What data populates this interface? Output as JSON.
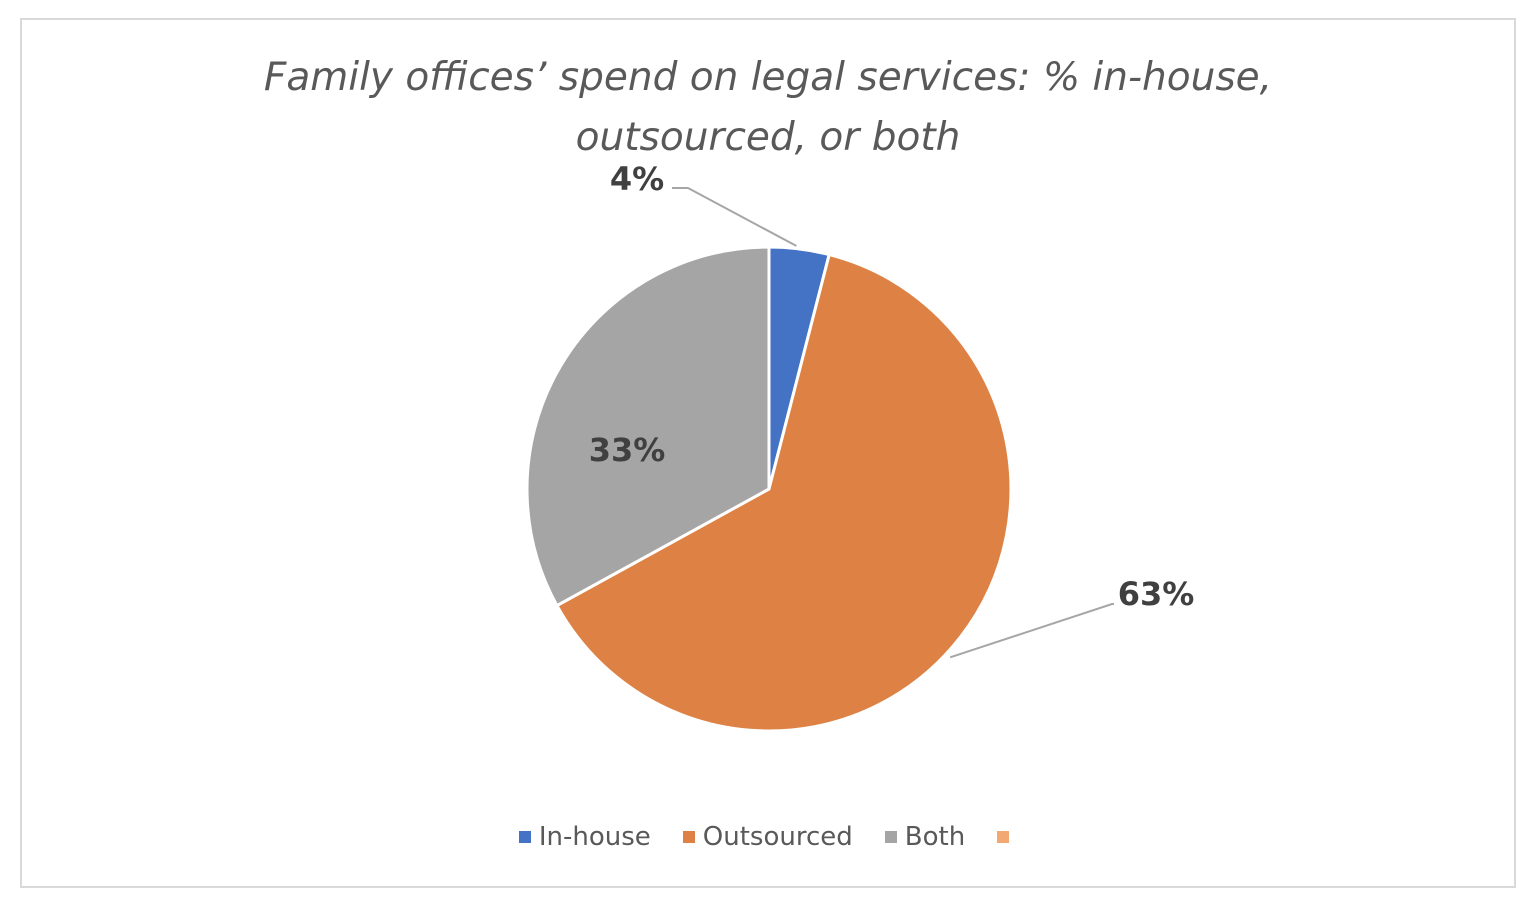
{
  "chart_data": {
    "type": "pie",
    "title": "Family offices’ spend on legal services: % in-house, outsourced, or both",
    "title_lines": [
      "Family offices’ spend on legal services: % in-house,",
      "outsourced, or both"
    ],
    "categories": [
      "In-house",
      "Outsourced",
      "Both",
      ""
    ],
    "values": [
      4,
      63,
      33,
      0
    ],
    "data_labels": [
      "4%",
      "63%",
      "33%",
      ""
    ],
    "colors": [
      "#4472c4",
      "#dd8244",
      "#a5a5a5",
      "#f4a871"
    ],
    "legend_placement": "bottom"
  }
}
